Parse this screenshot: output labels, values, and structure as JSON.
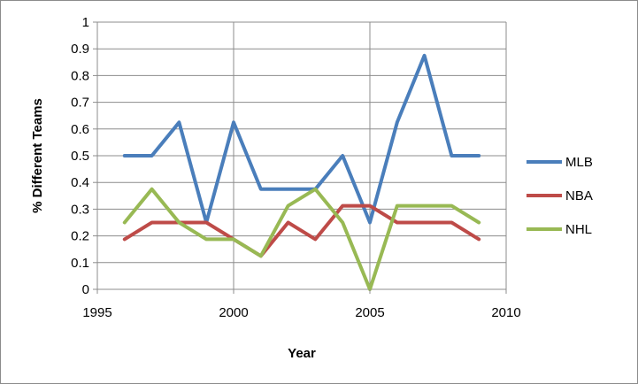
{
  "chart_data": {
    "type": "line",
    "title": "",
    "xlabel": "Year",
    "ylabel": "% Different Teams",
    "xlim": [
      1995,
      2010
    ],
    "ylim": [
      0,
      1
    ],
    "x_ticks": [
      1995,
      2000,
      2005,
      2010
    ],
    "y_ticks": [
      0,
      0.1,
      0.2,
      0.3,
      0.4,
      0.5,
      0.6,
      0.7,
      0.8,
      0.9,
      1
    ],
    "x_tick_labels": [
      "1995",
      "2000",
      "2005",
      "2010"
    ],
    "y_tick_labels": [
      "0",
      "0.1",
      "0.2",
      "0.3",
      "0.4",
      "0.5",
      "0.6",
      "0.7",
      "0.8",
      "0.9",
      "1"
    ],
    "grid": "major",
    "legend_position": "right",
    "x": [
      1996,
      1997,
      1998,
      1999,
      2000,
      2001,
      2002,
      2003,
      2004,
      2005,
      2006,
      2007,
      2008,
      2009
    ],
    "series": [
      {
        "name": "MLB",
        "color": "#4a7ebb",
        "values": [
          0.5,
          0.5,
          0.625,
          0.25,
          0.625,
          0.375,
          0.375,
          0.375,
          0.5,
          0.25,
          0.625,
          0.875,
          0.5,
          0.5
        ]
      },
      {
        "name": "NBA",
        "color": "#be4b48",
        "values": [
          0.1875,
          0.25,
          0.25,
          0.25,
          0.1875,
          0.125,
          0.25,
          0.1875,
          0.3125,
          0.3125,
          0.25,
          0.25,
          0.25,
          0.1875
        ]
      },
      {
        "name": "NHL",
        "color": "#98b954",
        "values": [
          0.25,
          0.375,
          0.25,
          0.1875,
          0.1875,
          0.125,
          0.3125,
          0.375,
          0.25,
          0.0,
          0.3125,
          0.3125,
          0.3125,
          0.25
        ]
      }
    ]
  }
}
